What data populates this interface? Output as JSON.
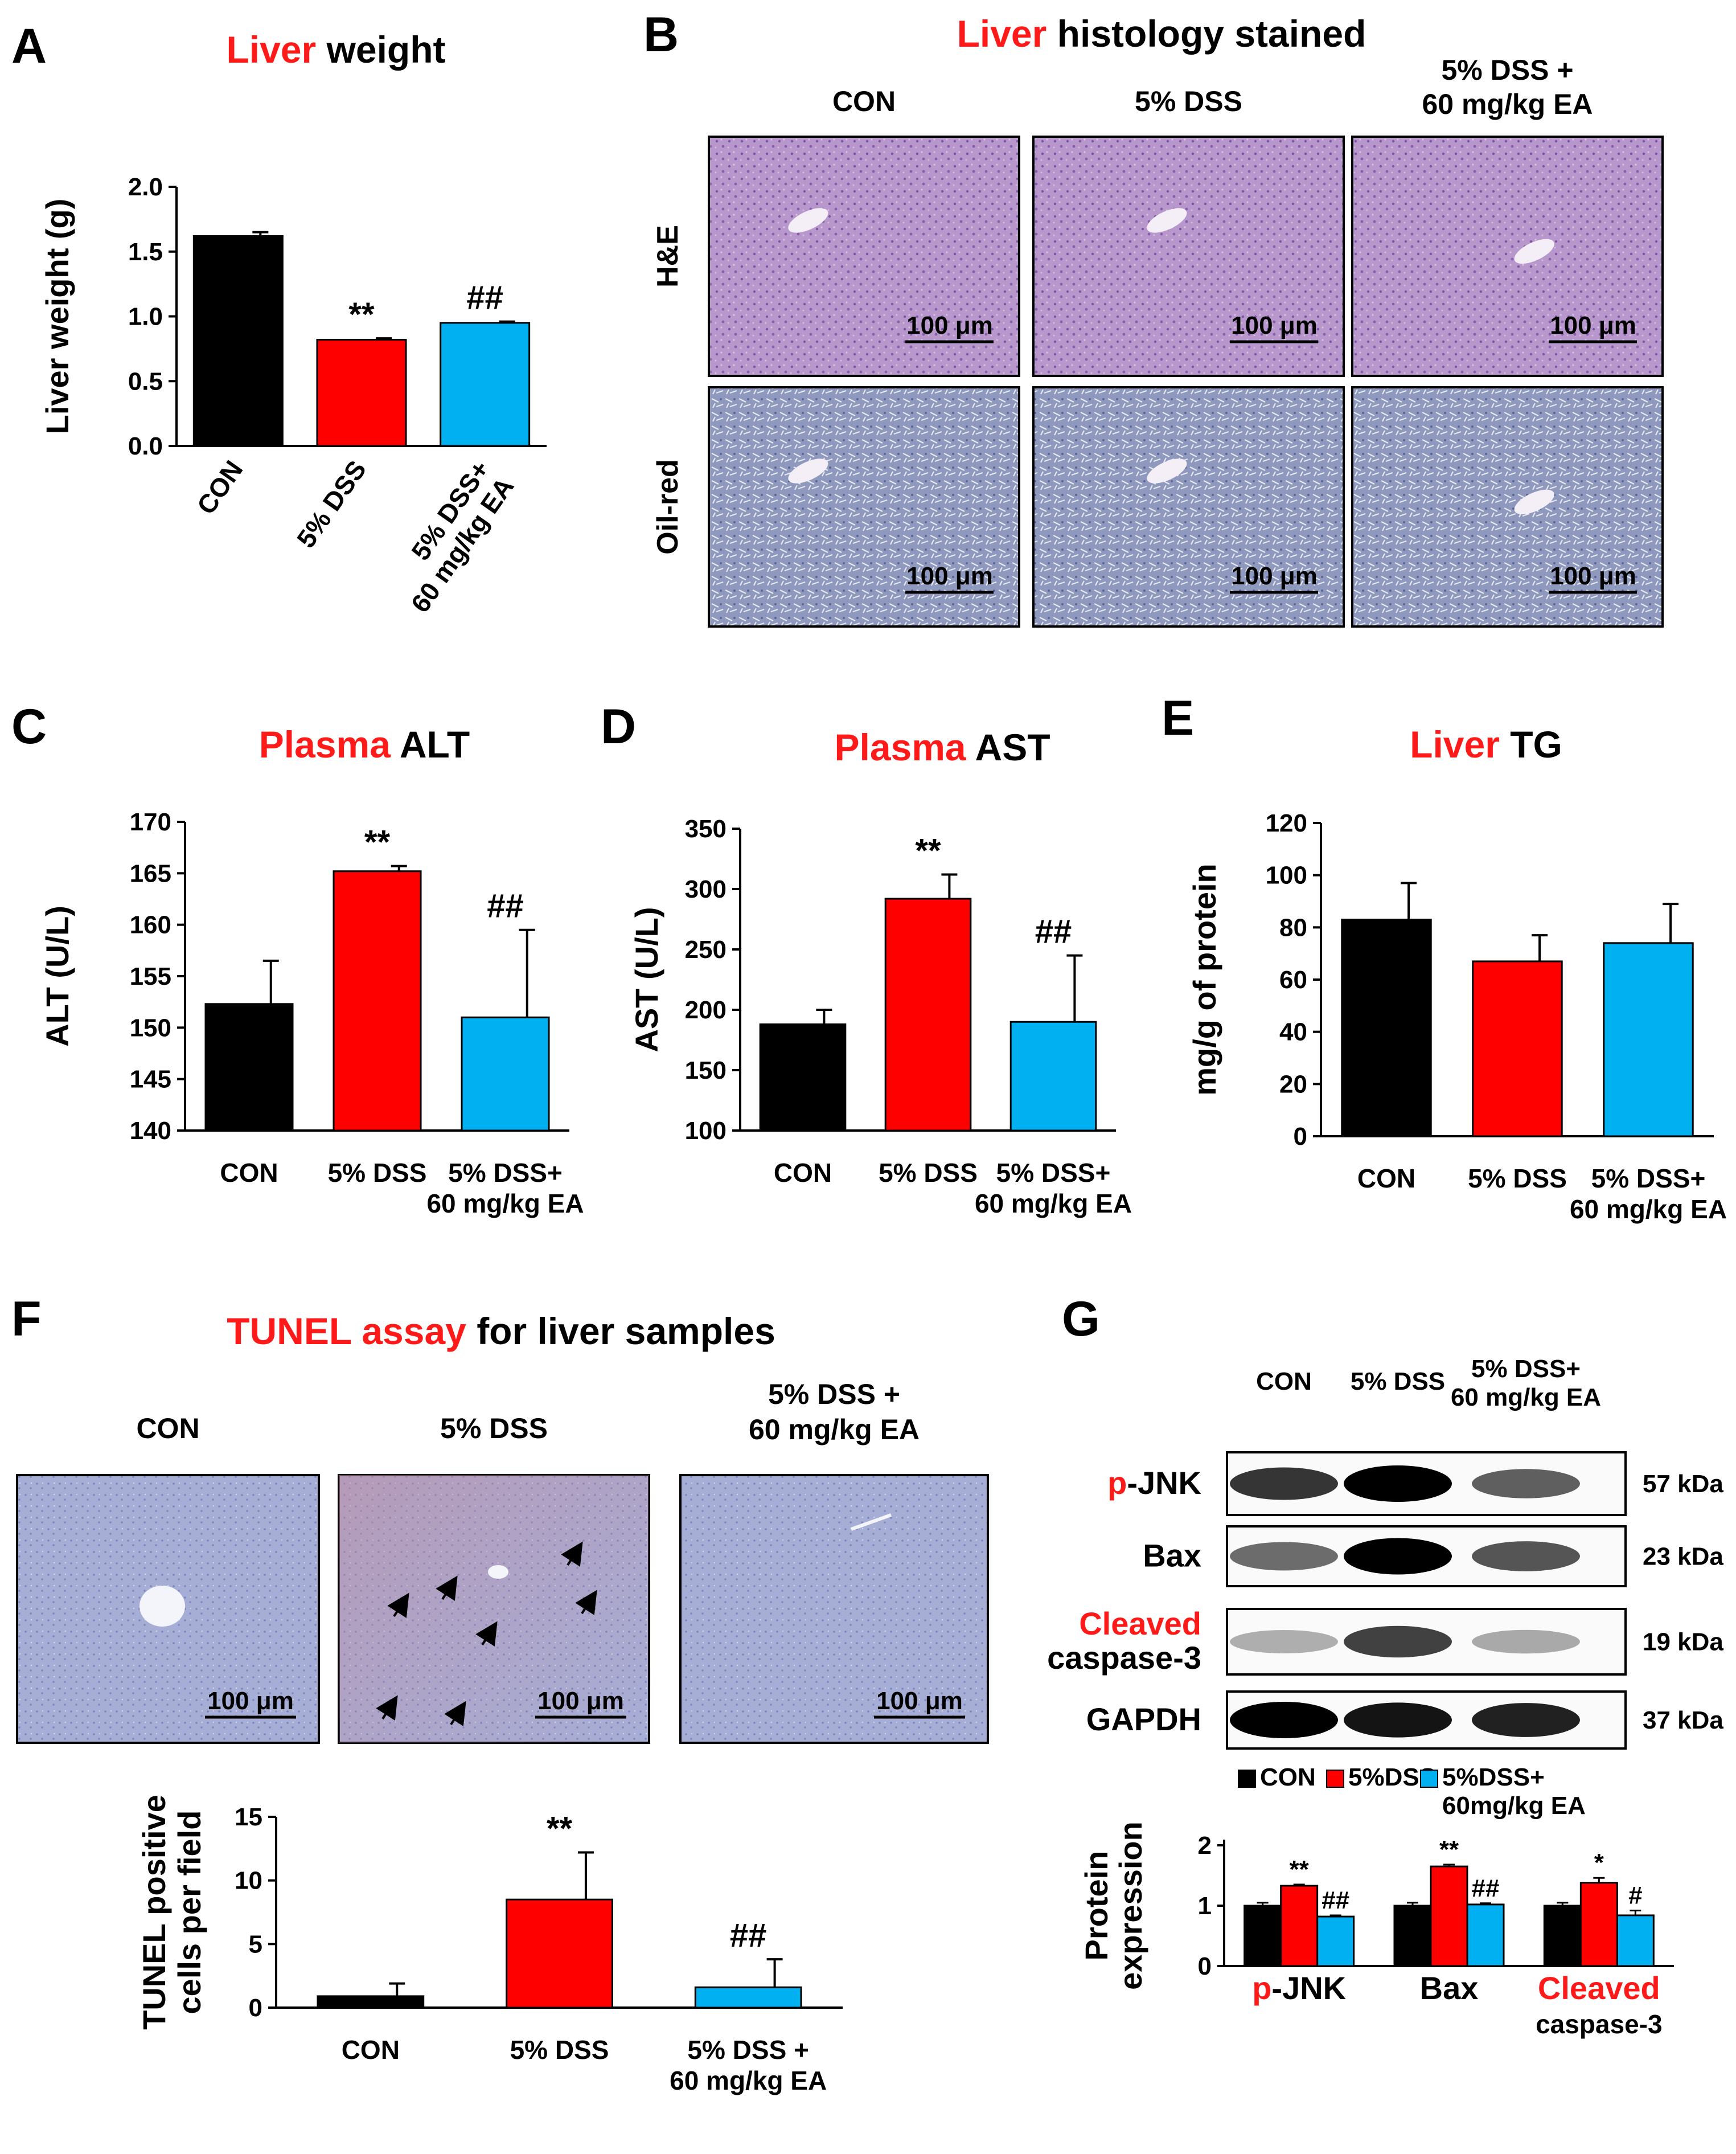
{
  "panel_letters": {
    "a": "A",
    "b": "B",
    "c": "C",
    "d": "D",
    "e": "E",
    "f": "F",
    "g": "G"
  },
  "colors": {
    "con": "#000000",
    "dss": "#ff0000",
    "ea": "#00b0f0",
    "title_red": "#ff1a1a",
    "hne_tissue": "#b496c8",
    "oil_tissue": "#9aa2c4",
    "tunel_tissue": "#a6aed6"
  },
  "panel_a": {
    "title_red": "Liver",
    "title_black": " weight",
    "ylabel": "Liver weight (g)",
    "ticks": [
      "0.0",
      "0.5",
      "1.0",
      "1.5",
      "2.0"
    ],
    "categories": [
      [
        "CON"
      ],
      [
        "5% DSS"
      ],
      [
        "5% DSS+",
        "60 mg/kg EA"
      ]
    ],
    "sig": [
      "",
      "**",
      "##"
    ]
  },
  "panel_b": {
    "title_red": "Liver",
    "title_black": " histology stained",
    "columns": [
      [
        "CON"
      ],
      [
        "5% DSS"
      ],
      [
        "5% DSS +",
        "60 mg/kg EA"
      ]
    ],
    "rows": [
      "H&E",
      "Oil-red"
    ],
    "scale_bar": "100 μm"
  },
  "panel_c": {
    "title_red": "Plasma",
    "title_black": " ALT",
    "ylabel": "ALT (U/L)",
    "ticks": [
      "140",
      "145",
      "150",
      "155",
      "160",
      "165",
      "170"
    ],
    "categories": [
      [
        "CON"
      ],
      [
        "5%  DSS"
      ],
      [
        "5%  DSS+",
        "60 mg/kg EA"
      ]
    ],
    "sig": [
      "",
      "**",
      "##"
    ]
  },
  "panel_d": {
    "title_red": "Plasma",
    "title_black": " AST",
    "ylabel": "AST (U/L)",
    "ticks": [
      "100",
      "150",
      "200",
      "250",
      "300",
      "350"
    ],
    "categories": [
      [
        "CON"
      ],
      [
        "5%  DSS"
      ],
      [
        "5%  DSS+",
        "60 mg/kg EA"
      ]
    ],
    "sig": [
      "",
      "**",
      "##"
    ]
  },
  "panel_e": {
    "title_red": "Liver",
    "title_black": " TG",
    "ylabel": "mg/g of protein",
    "ticks": [
      "0",
      "20",
      "40",
      "60",
      "80",
      "100",
      "120"
    ],
    "categories": [
      [
        "CON"
      ],
      [
        "5%  DSS"
      ],
      [
        "5%  DSS+",
        "60 mg/kg EA"
      ]
    ],
    "sig": [
      "",
      "",
      ""
    ]
  },
  "panel_f": {
    "title_red": "TUNEL assay",
    "title_black": " for liver samples",
    "columns": [
      [
        "CON"
      ],
      [
        "5% DSS"
      ],
      [
        "5% DSS +",
        "60 mg/kg EA"
      ]
    ],
    "scale_bar": "100 μm",
    "ylabel": [
      "TUNEL positive",
      "cells per field"
    ],
    "ticks": [
      "0",
      "5",
      "10",
      "15"
    ],
    "categories": [
      [
        "CON"
      ],
      [
        "5%  DSS"
      ],
      [
        "5%  DSS +",
        "60 mg/kg EA"
      ]
    ],
    "sig": [
      "",
      "**",
      "##"
    ]
  },
  "panel_g": {
    "lanes": [
      [
        "CON"
      ],
      [
        "5%  DSS"
      ],
      [
        "5%  DSS+",
        "60 mg/kg EA"
      ]
    ],
    "blots": [
      {
        "red": "p",
        "black": "-JNK",
        "kda": "57 kDa"
      },
      {
        "red": "",
        "black": "Bax",
        "kda": "23 kDa"
      },
      {
        "red": "Cleaved",
        "black": "caspase-3",
        "kda": "19 kDa"
      },
      {
        "red": "",
        "black": "GAPDH",
        "kda": "37 kDa"
      }
    ],
    "legend": [
      [
        "CON"
      ],
      [
        "5%DSS"
      ],
      [
        "5%DSS+",
        "60mg/kg EA"
      ]
    ],
    "ylabel": [
      "Protein",
      "expression"
    ],
    "ticks": [
      "0",
      "1",
      "2"
    ],
    "groups": [
      {
        "red": "p",
        "black": "-JNK"
      },
      {
        "red": "",
        "black": "Bax"
      },
      {
        "red": "Cleaved",
        "black": "caspase-3"
      }
    ],
    "sig": [
      [
        "",
        "**",
        "##"
      ],
      [
        "",
        "**",
        "##"
      ],
      [
        "",
        "*",
        "#"
      ]
    ]
  },
  "chart_data": [
    {
      "panel": "A",
      "type": "bar",
      "title": "Liver weight",
      "ylabel": "Liver weight (g)",
      "categories": [
        "CON",
        "5% DSS",
        "5% DSS+ 60 mg/kg EA"
      ],
      "values": [
        1.62,
        0.82,
        0.95
      ],
      "errors": [
        0.03,
        0.01,
        0.01
      ],
      "ylim": [
        0,
        2.0
      ]
    },
    {
      "panel": "C",
      "type": "bar",
      "title": "Plasma ALT",
      "ylabel": "ALT (U/L)",
      "categories": [
        "CON",
        "5%  DSS",
        "5%  DSS+ 60 mg/kg EA"
      ],
      "values": [
        152.3,
        165.2,
        151.0
      ],
      "errors": [
        4.2,
        0.5,
        8.5
      ],
      "ylim": [
        140,
        170
      ]
    },
    {
      "panel": "D",
      "type": "bar",
      "title": "Plasma AST",
      "ylabel": "AST (U/L)",
      "categories": [
        "CON",
        "5%  DSS",
        "5%  DSS+ 60 mg/kg EA"
      ],
      "values": [
        188,
        292,
        190
      ],
      "errors": [
        12,
        20,
        55
      ],
      "ylim": [
        100,
        350
      ]
    },
    {
      "panel": "E",
      "type": "bar",
      "title": "Liver TG",
      "ylabel": "mg/g of protein",
      "categories": [
        "CON",
        "5%  DSS",
        "5%  DSS+ 60 mg/kg EA"
      ],
      "values": [
        83,
        67,
        74
      ],
      "errors": [
        14,
        10,
        15
      ],
      "ylim": [
        0,
        120
      ]
    },
    {
      "panel": "F",
      "type": "bar",
      "ylabel": "TUNEL positive cells per field",
      "categories": [
        "CON",
        "5%  DSS",
        "5%  DSS + 60 mg/kg EA"
      ],
      "values": [
        0.9,
        8.5,
        1.6
      ],
      "errors": [
        1.0,
        3.7,
        2.2
      ],
      "ylim": [
        0,
        15
      ]
    },
    {
      "panel": "G",
      "type": "bar",
      "ylabel": "Protein expression",
      "categories": [
        "p-JNK",
        "Bax",
        "Cleaved caspase-3"
      ],
      "ylim": [
        0,
        2
      ],
      "series": [
        {
          "name": "CON",
          "values": [
            1.0,
            1.0,
            1.0
          ],
          "errors": [
            0.05,
            0.05,
            0.05
          ]
        },
        {
          "name": "5%DSS",
          "values": [
            1.33,
            1.65,
            1.38
          ],
          "errors": [
            0.02,
            0.03,
            0.08
          ]
        },
        {
          "name": "5%DSS+ 60mg/kg EA",
          "values": [
            0.82,
            1.02,
            0.84
          ],
          "errors": [
            0.02,
            0.02,
            0.08
          ]
        }
      ]
    }
  ]
}
